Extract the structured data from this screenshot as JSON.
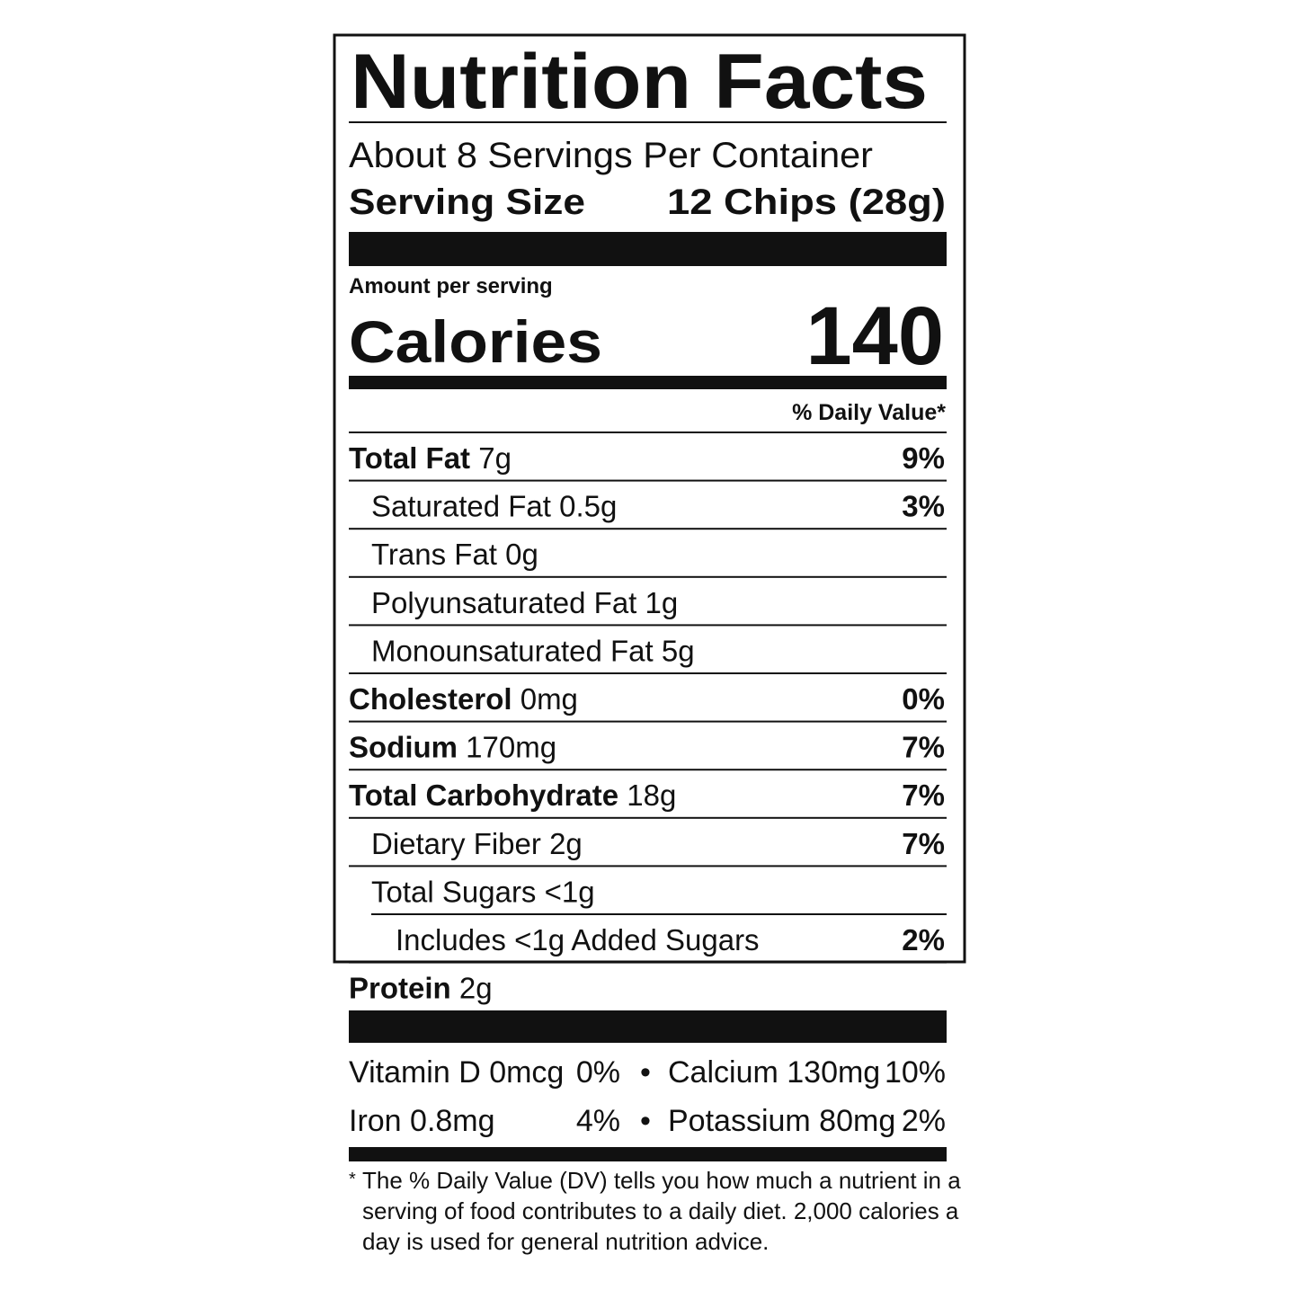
{
  "title": "Nutrition Facts",
  "servings_per_container": "About 8 Servings Per Container",
  "serving_size": {
    "label": "Serving Size",
    "value": "12 Chips (28g)"
  },
  "amount_per_serving": "Amount per serving",
  "calories": {
    "label": "Calories",
    "value": "140"
  },
  "daily_value_header": "% Daily Value*",
  "nutrients": [
    {
      "name": "Total Fat",
      "amount": "7g",
      "dv": "9%",
      "bold": true,
      "indent": 0
    },
    {
      "name": "Saturated Fat",
      "amount": "0.5g",
      "dv": "3%",
      "bold": false,
      "indent": 1
    },
    {
      "name": "Trans Fat",
      "amount": "0g",
      "bold": false,
      "indent": 1
    },
    {
      "name": "Polyunsaturated Fat",
      "amount": "1g",
      "bold": false,
      "indent": 1
    },
    {
      "name": "Monounsaturated Fat",
      "amount": "5g",
      "bold": false,
      "indent": 1
    },
    {
      "name": "Cholesterol",
      "amount": "0mg",
      "dv": "0%",
      "bold": true,
      "indent": 0
    },
    {
      "name": "Sodium",
      "amount": "170mg",
      "dv": "7%",
      "bold": true,
      "indent": 0
    },
    {
      "name": "Total Carbohydrate",
      "amount": "18g",
      "dv": "7%",
      "bold": true,
      "indent": 0
    },
    {
      "name": "Dietary Fiber",
      "amount": "2g",
      "dv": "7%",
      "bold": false,
      "indent": 1
    },
    {
      "name": "Total Sugars",
      "amount": "<1g",
      "bold": false,
      "indent": 1
    },
    {
      "name": "Includes <1g Added Sugars",
      "dv": "2%",
      "bold": false,
      "indent": 2
    },
    {
      "name": "Protein",
      "amount": "2g",
      "bold": true,
      "indent": 0
    }
  ],
  "vitamins": [
    [
      {
        "name": "Vitamin D 0mcg",
        "dv": "0%"
      },
      {
        "name": "Calcium 130mg",
        "dv": "10%"
      }
    ],
    [
      {
        "name": "Iron 0.8mg",
        "dv": "4%"
      },
      {
        "name": "Potassium 80mg",
        "dv": "2%"
      }
    ]
  ],
  "vitamin_separator": "•",
  "footnote": {
    "mark": "*",
    "lines": [
      "The % Daily Value (DV) tells you how much a nutrient in a",
      "serving of food contributes to a daily diet. 2,000 calories a",
      "day is used for general nutrition advice."
    ]
  }
}
